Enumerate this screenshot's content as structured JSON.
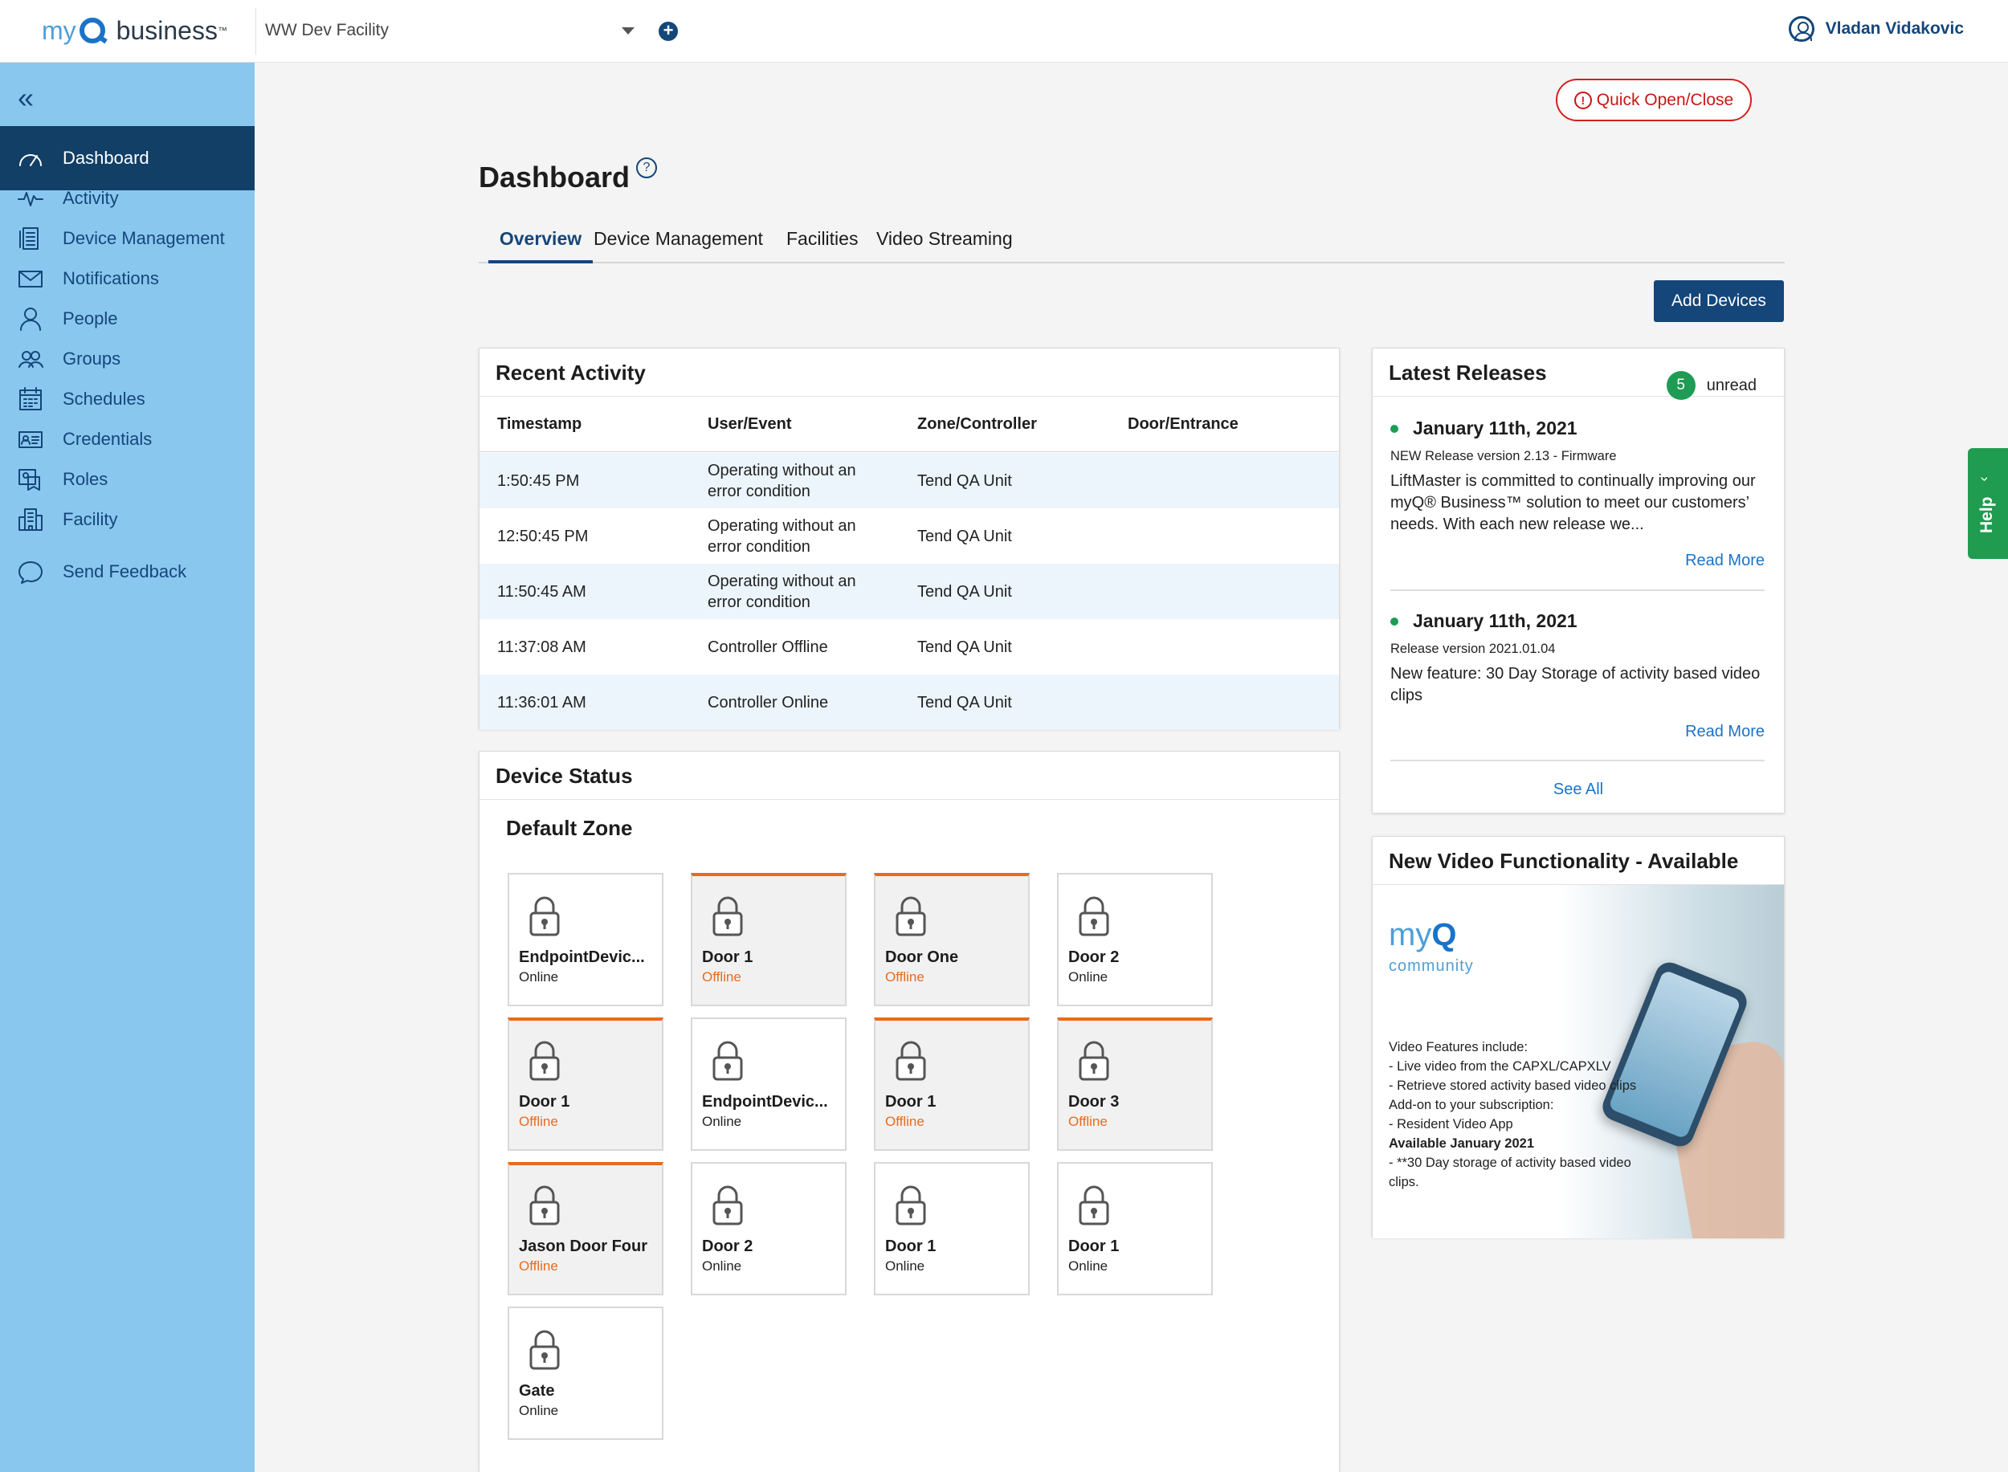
{
  "app": {
    "brand_my": "my",
    "brand_business": "business",
    "facility": "WW Dev Facility",
    "user": "Vladan Vidakovic"
  },
  "sidebar": {
    "items": [
      {
        "label": "Dashboard",
        "icon": "gauge-icon",
        "active": true
      },
      {
        "label": "Activity",
        "icon": "pulse-icon"
      },
      {
        "label": "Device Management",
        "icon": "device-list-icon"
      },
      {
        "label": "Notifications",
        "icon": "envelope-icon"
      },
      {
        "label": "People",
        "icon": "person-icon"
      },
      {
        "label": "Groups",
        "icon": "group-icon"
      },
      {
        "label": "Schedules",
        "icon": "calendar-icon"
      },
      {
        "label": "Credentials",
        "icon": "id-card-icon"
      },
      {
        "label": "Roles",
        "icon": "role-badge-icon"
      },
      {
        "label": "Facility",
        "icon": "building-icon"
      },
      {
        "label": "Send Feedback",
        "icon": "chat-bubble-icon"
      }
    ]
  },
  "header": {
    "quick_open": "Quick Open/Close",
    "title": "Dashboard",
    "help": "?",
    "tabs": [
      "Overview",
      "Device Management",
      "Facilities",
      "Video Streaming"
    ],
    "add_devices": "Add Devices"
  },
  "recent_activity": {
    "title": "Recent Activity",
    "columns": [
      "Timestamp",
      "User/Event",
      "Zone/Controller",
      "Door/Entrance"
    ],
    "rows": [
      {
        "time": "1:50:45 PM",
        "event": "Operating without an error condition",
        "zone": "Tend QA Unit",
        "door": ""
      },
      {
        "time": "12:50:45 PM",
        "event": "Operating without an error condition",
        "zone": "Tend QA Unit",
        "door": ""
      },
      {
        "time": "11:50:45 AM",
        "event": "Operating without an error condition",
        "zone": "Tend QA Unit",
        "door": ""
      },
      {
        "time": "11:37:08 AM",
        "event": "Controller Offline",
        "zone": "Tend QA Unit",
        "door": ""
      },
      {
        "time": "11:36:01 AM",
        "event": "Controller Online",
        "zone": "Tend QA Unit",
        "door": ""
      }
    ]
  },
  "device_status": {
    "title": "Device Status",
    "zone": "Default Zone",
    "devices": [
      {
        "name": "EndpointDevic...",
        "status": "Online"
      },
      {
        "name": "Door 1",
        "status": "Offline"
      },
      {
        "name": "Door One",
        "status": "Offline"
      },
      {
        "name": "Door 2",
        "status": "Online"
      },
      {
        "name": "Door 1",
        "status": "Offline"
      },
      {
        "name": "EndpointDevic...",
        "status": "Online"
      },
      {
        "name": "Door 1",
        "status": "Offline"
      },
      {
        "name": "Door 3",
        "status": "Offline"
      },
      {
        "name": "Jason Door Four",
        "status": "Offline"
      },
      {
        "name": "Door 2",
        "status": "Online"
      },
      {
        "name": "Door 1",
        "status": "Online"
      },
      {
        "name": "Door 1",
        "status": "Online"
      },
      {
        "name": "Gate",
        "status": "Online"
      }
    ]
  },
  "latest_releases": {
    "title": "Latest Releases",
    "unread_count": "5",
    "unread_label": "unread",
    "items": [
      {
        "date": "January 11th, 2021",
        "version": "NEW Release version 2.13 - Firmware",
        "body": "LiftMaster is committed to continually improving our myQ® Business™ solution to meet our customers’ needs. With each new release we...",
        "more": "Read More"
      },
      {
        "date": "January 11th, 2021",
        "version": "Release version 2021.01.04",
        "body": "New feature: 30 Day Storage of activity based video clips",
        "more": "Read More"
      }
    ],
    "see_all": "See All"
  },
  "video": {
    "title": "New Video Functionality - Available",
    "brand_my": "my",
    "brand_q": "Q",
    "brand_community": "community",
    "lines": [
      {
        "text": "Video Features include:",
        "bold": false
      },
      {
        "text": "- Live video from the CAPXL/CAPXLV",
        "bold": false
      },
      {
        "text": "- Retrieve stored activity based video clips",
        "bold": false
      },
      {
        "text": "Add-on to your subscription:",
        "bold": false
      },
      {
        "text": "- Resident Video App",
        "bold": false
      },
      {
        "text": "Available January 2021",
        "bold": true
      },
      {
        "text": "- **30 Day storage of activity based video clips.",
        "bold": false
      }
    ]
  },
  "help_tab": "Help",
  "colors": {
    "sidebar": "#8ac7ee",
    "active_nav": "#123f66",
    "primary": "#14467a",
    "offline": "#e86b1c",
    "online_dot": "#1e9c55",
    "danger": "#c91616"
  }
}
